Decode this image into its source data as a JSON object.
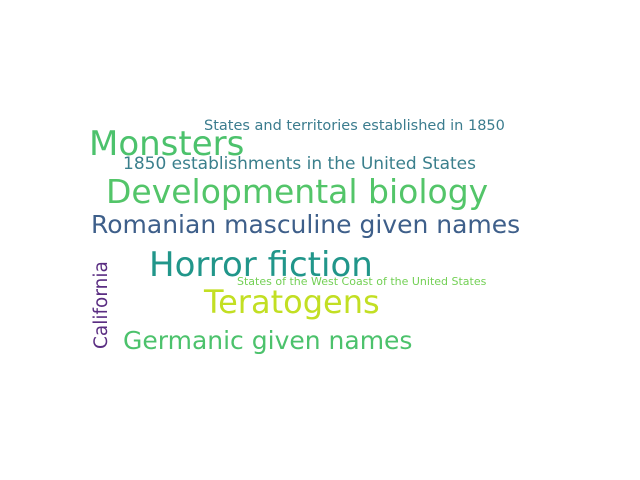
{
  "words": [
    {
      "text": "States and territories established in 1850",
      "color": "#3b7c8e"
    },
    {
      "text": "Monsters",
      "color": "#4cc26c"
    },
    {
      "text": "1850 establishments in the United States",
      "color": "#3a7f8c"
    },
    {
      "text": "Developmental biology",
      "color": "#53c569"
    },
    {
      "text": "Romanian masculine given names",
      "color": "#3e5f8a"
    },
    {
      "text": "Horror fiction",
      "color": "#21968a"
    },
    {
      "text": "States of the West Coast of the United States",
      "color": "#73d055"
    },
    {
      "text": "Teratogens",
      "color": "#c2df23"
    },
    {
      "text": "Germanic given names",
      "color": "#4cc26c"
    },
    {
      "text": "California",
      "color": "#5a2d82"
    }
  ]
}
